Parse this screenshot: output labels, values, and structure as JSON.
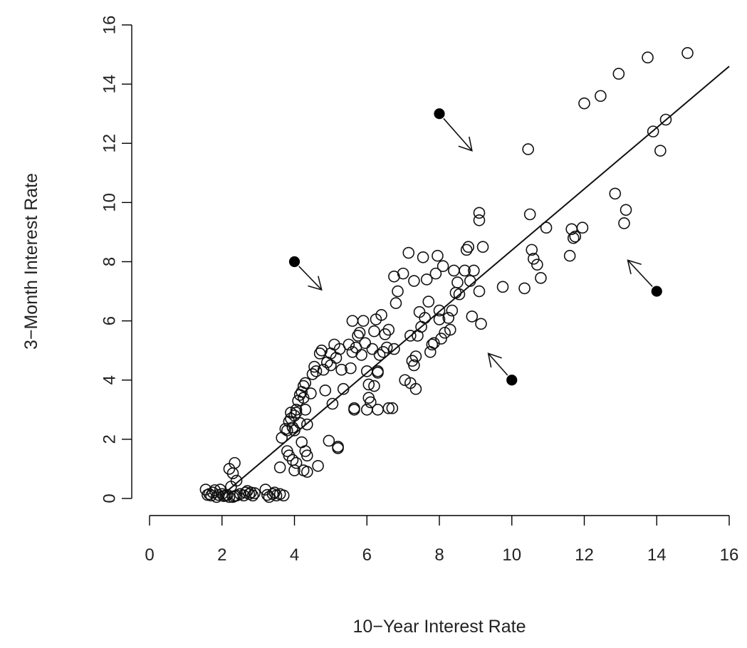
{
  "chart_data": {
    "type": "scatter",
    "xlabel": "10−Year Interest Rate",
    "ylabel": "3−Month Interest Rate",
    "xlim": [
      0,
      16
    ],
    "ylim": [
      0,
      16
    ],
    "x_ticks": [
      "0",
      "2",
      "4",
      "6",
      "8",
      "10",
      "12",
      "14",
      "16"
    ],
    "y_ticks": [
      "0",
      "2",
      "4",
      "6",
      "8",
      "10",
      "12",
      "14",
      "16"
    ],
    "grid": false,
    "fit_line": {
      "x": [
        1.9,
        16
      ],
      "y": [
        0,
        14.6
      ]
    },
    "points": [
      [
        1.55,
        0.3
      ],
      [
        1.6,
        0.12
      ],
      [
        1.65,
        0.15
      ],
      [
        1.7,
        0.1
      ],
      [
        1.75,
        0.2
      ],
      [
        1.8,
        0.28
      ],
      [
        1.85,
        0.05
      ],
      [
        1.9,
        0.12
      ],
      [
        1.95,
        0.3
      ],
      [
        2.0,
        0.15
      ],
      [
        2.05,
        0.08
      ],
      [
        2.1,
        0.1
      ],
      [
        2.15,
        0.12
      ],
      [
        2.2,
        0.05
      ],
      [
        2.25,
        0.4
      ],
      [
        2.3,
        0.05
      ],
      [
        2.35,
        0.08
      ],
      [
        2.4,
        0.1
      ],
      [
        2.5,
        0.15
      ],
      [
        2.6,
        0.1
      ],
      [
        2.65,
        0.2
      ],
      [
        2.7,
        0.25
      ],
      [
        2.75,
        0.15
      ],
      [
        2.8,
        0.2
      ],
      [
        2.85,
        0.1
      ],
      [
        2.9,
        0.18
      ],
      [
        3.2,
        0.3
      ],
      [
        3.25,
        0.12
      ],
      [
        3.3,
        0.05
      ],
      [
        3.4,
        0.15
      ],
      [
        3.45,
        0.2
      ],
      [
        3.5,
        0.1
      ],
      [
        3.6,
        0.15
      ],
      [
        3.7,
        0.1
      ],
      [
        2.2,
        1.0
      ],
      [
        2.3,
        0.85
      ],
      [
        2.35,
        1.2
      ],
      [
        2.4,
        0.6
      ],
      [
        3.6,
        1.05
      ],
      [
        3.65,
        2.05
      ],
      [
        3.75,
        2.35
      ],
      [
        3.8,
        2.3
      ],
      [
        3.8,
        1.6
      ],
      [
        3.85,
        1.45
      ],
      [
        3.85,
        2.6
      ],
      [
        3.9,
        2.7
      ],
      [
        3.9,
        2.9
      ],
      [
        3.95,
        2.4
      ],
      [
        3.95,
        1.3
      ],
      [
        4.0,
        2.3
      ],
      [
        4.0,
        2.8
      ],
      [
        4.0,
        0.95
      ],
      [
        4.05,
        3.0
      ],
      [
        4.05,
        2.9
      ],
      [
        4.05,
        1.2
      ],
      [
        4.1,
        3.3
      ],
      [
        4.15,
        3.5
      ],
      [
        4.15,
        2.55
      ],
      [
        4.2,
        3.6
      ],
      [
        4.2,
        1.9
      ],
      [
        4.25,
        3.8
      ],
      [
        4.25,
        3.4
      ],
      [
        4.25,
        0.95
      ],
      [
        4.3,
        3.9
      ],
      [
        4.3,
        1.6
      ],
      [
        4.3,
        3.0
      ],
      [
        4.35,
        2.5
      ],
      [
        4.35,
        0.9
      ],
      [
        4.35,
        1.45
      ],
      [
        4.45,
        3.55
      ],
      [
        4.5,
        4.2
      ],
      [
        4.55,
        4.45
      ],
      [
        4.6,
        4.3
      ],
      [
        4.65,
        1.1
      ],
      [
        4.7,
        4.9
      ],
      [
        4.75,
        5.0
      ],
      [
        4.8,
        4.35
      ],
      [
        4.85,
        3.65
      ],
      [
        4.9,
        4.6
      ],
      [
        4.95,
        1.95
      ],
      [
        5.0,
        4.9
      ],
      [
        5.0,
        4.5
      ],
      [
        5.05,
        3.2
      ],
      [
        5.1,
        5.2
      ],
      [
        5.15,
        4.75
      ],
      [
        5.2,
        1.75
      ],
      [
        5.2,
        1.7
      ],
      [
        5.25,
        5.05
      ],
      [
        5.3,
        4.35
      ],
      [
        5.35,
        3.7
      ],
      [
        5.5,
        5.2
      ],
      [
        5.55,
        4.4
      ],
      [
        5.6,
        4.95
      ],
      [
        5.6,
        6.0
      ],
      [
        5.65,
        3.0
      ],
      [
        5.65,
        3.05
      ],
      [
        5.7,
        5.1
      ],
      [
        5.75,
        5.5
      ],
      [
        5.8,
        5.6
      ],
      [
        5.85,
        4.85
      ],
      [
        5.9,
        6.0
      ],
      [
        5.95,
        5.25
      ],
      [
        6.0,
        4.3
      ],
      [
        6.0,
        3.0
      ],
      [
        6.05,
        3.85
      ],
      [
        6.05,
        3.4
      ],
      [
        6.1,
        3.25
      ],
      [
        6.15,
        5.05
      ],
      [
        6.2,
        3.8
      ],
      [
        6.2,
        5.65
      ],
      [
        6.25,
        6.05
      ],
      [
        6.3,
        4.25
      ],
      [
        6.3,
        4.3
      ],
      [
        6.3,
        3.0
      ],
      [
        6.35,
        4.85
      ],
      [
        6.4,
        6.2
      ],
      [
        6.45,
        4.95
      ],
      [
        6.5,
        5.55
      ],
      [
        6.55,
        5.1
      ],
      [
        6.6,
        5.7
      ],
      [
        6.6,
        3.05
      ],
      [
        6.7,
        3.05
      ],
      [
        6.75,
        5.05
      ],
      [
        6.75,
        7.5
      ],
      [
        6.8,
        6.6
      ],
      [
        6.85,
        7.0
      ],
      [
        7.0,
        7.6
      ],
      [
        7.05,
        4.0
      ],
      [
        7.15,
        8.3
      ],
      [
        7.2,
        3.9
      ],
      [
        7.2,
        5.5
      ],
      [
        7.25,
        4.65
      ],
      [
        7.3,
        4.5
      ],
      [
        7.3,
        7.35
      ],
      [
        7.35,
        3.7
      ],
      [
        7.35,
        4.8
      ],
      [
        7.4,
        5.5
      ],
      [
        7.45,
        6.3
      ],
      [
        7.5,
        5.8
      ],
      [
        7.55,
        8.15
      ],
      [
        7.6,
        6.1
      ],
      [
        7.65,
        7.4
      ],
      [
        7.7,
        6.65
      ],
      [
        7.75,
        4.95
      ],
      [
        7.8,
        5.2
      ],
      [
        7.85,
        5.25
      ],
      [
        7.9,
        7.6
      ],
      [
        7.95,
        8.2
      ],
      [
        8.0,
        6.05
      ],
      [
        8.0,
        6.35
      ],
      [
        8.05,
        5.4
      ],
      [
        8.1,
        7.85
      ],
      [
        8.15,
        5.6
      ],
      [
        8.25,
        6.1
      ],
      [
        8.3,
        5.7
      ],
      [
        8.35,
        6.35
      ],
      [
        8.4,
        7.7
      ],
      [
        8.45,
        6.95
      ],
      [
        8.5,
        7.3
      ],
      [
        8.55,
        6.9
      ],
      [
        8.7,
        7.7
      ],
      [
        8.75,
        8.4
      ],
      [
        8.8,
        8.5
      ],
      [
        8.85,
        7.35
      ],
      [
        8.9,
        6.15
      ],
      [
        8.95,
        7.7
      ],
      [
        9.1,
        7.0
      ],
      [
        9.1,
        9.4
      ],
      [
        9.1,
        9.65
      ],
      [
        9.15,
        5.9
      ],
      [
        9.2,
        8.5
      ],
      [
        9.75,
        7.15
      ],
      [
        10.35,
        7.1
      ],
      [
        10.45,
        11.8
      ],
      [
        10.5,
        9.6
      ],
      [
        10.55,
        8.4
      ],
      [
        10.6,
        8.1
      ],
      [
        10.7,
        7.9
      ],
      [
        10.8,
        7.45
      ],
      [
        10.95,
        9.15
      ],
      [
        11.6,
        8.2
      ],
      [
        11.65,
        9.1
      ],
      [
        11.7,
        8.8
      ],
      [
        11.75,
        8.85
      ],
      [
        11.95,
        9.15
      ],
      [
        12.0,
        13.35
      ],
      [
        12.45,
        13.6
      ],
      [
        12.85,
        10.3
      ],
      [
        12.95,
        14.35
      ],
      [
        13.1,
        9.3
      ],
      [
        13.15,
        9.75
      ],
      [
        13.75,
        14.9
      ],
      [
        13.9,
        12.4
      ],
      [
        14.1,
        11.75
      ],
      [
        14.25,
        12.8
      ],
      [
        14.85,
        15.05
      ]
    ],
    "highlighted_points": [
      {
        "x": 4,
        "y": 8,
        "arrow_to": [
          4.75,
          7.05
        ]
      },
      {
        "x": 8,
        "y": 13,
        "arrow_to": [
          8.9,
          11.75
        ]
      },
      {
        "x": 10,
        "y": 4,
        "arrow_to": [
          9.35,
          4.9
        ]
      },
      {
        "x": 14,
        "y": 7,
        "arrow_to": [
          13.2,
          8.05
        ]
      }
    ]
  }
}
